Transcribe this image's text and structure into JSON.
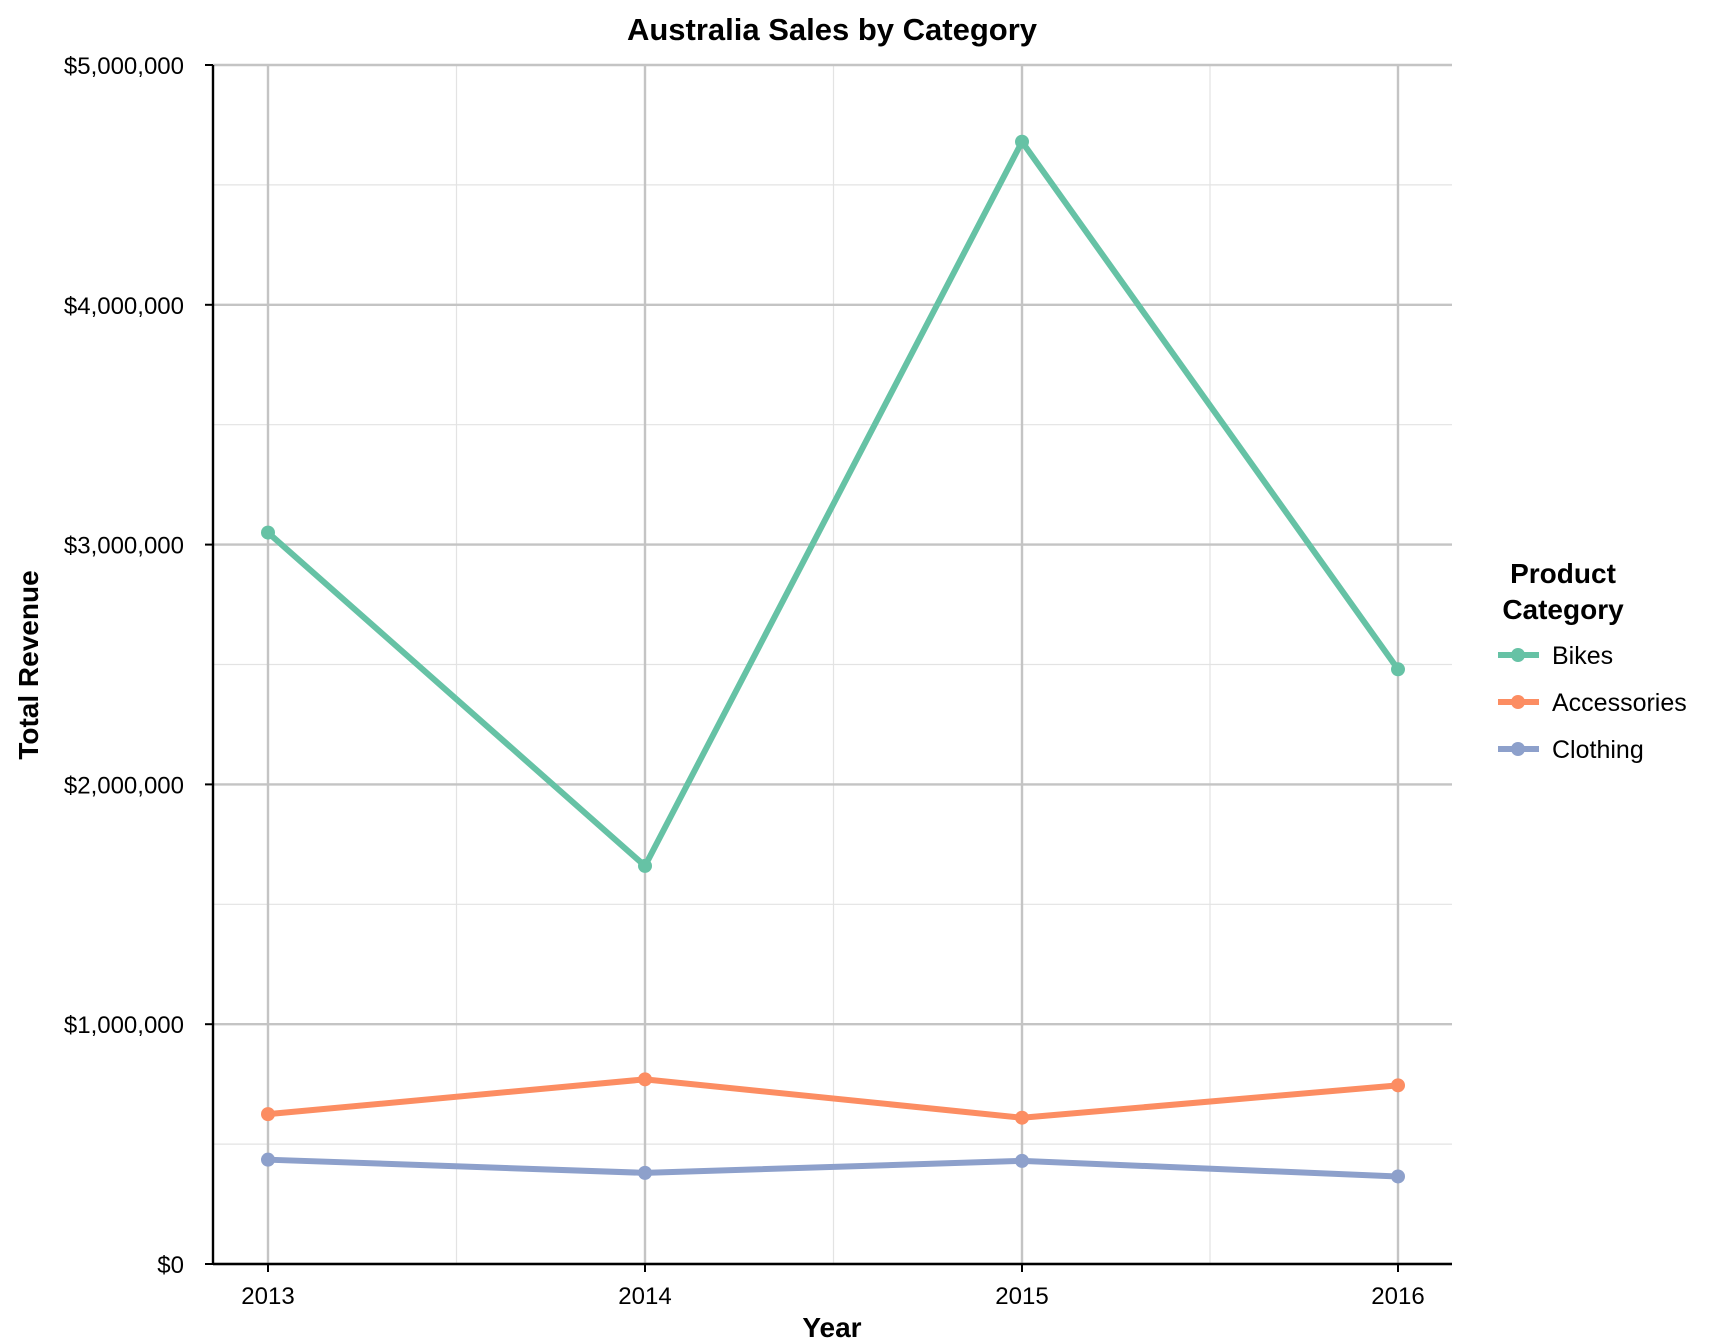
{
  "chart_data": {
    "type": "line",
    "title": "Australia Sales by Category",
    "xlabel": "Year",
    "ylabel": "Total Revenue",
    "categories": [
      "2013",
      "2014",
      "2015",
      "2016"
    ],
    "ylim": [
      0,
      5000000
    ],
    "y_ticks": [
      "$0",
      "$1,000,000",
      "$2,000,000",
      "$3,000,000",
      "$4,000,000",
      "$5,000,000"
    ],
    "grid": true,
    "legend": {
      "title_line1": "Product",
      "title_line2": "Category",
      "position": "right"
    },
    "series": [
      {
        "name": "Bikes",
        "color": "#66c2a5",
        "values": [
          3050000,
          1660000,
          4680000,
          2480000
        ]
      },
      {
        "name": "Accessories",
        "color": "#fc8d62",
        "values": [
          625000,
          770000,
          610000,
          745000
        ]
      },
      {
        "name": "Clothing",
        "color": "#8da0cb",
        "values": [
          435000,
          380000,
          430000,
          365000
        ]
      }
    ]
  }
}
